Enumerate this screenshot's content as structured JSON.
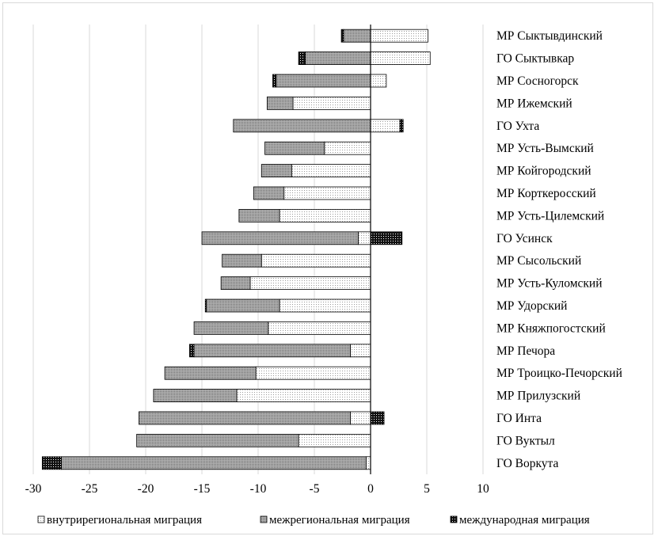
{
  "chart_data": {
    "type": "bar",
    "orientation": "horizontal",
    "stacked": true,
    "categories": [
      "МР Сыктывдинский",
      "ГО Сыктывкар",
      "МР Сосногорск",
      "МР Ижемский",
      "ГО Ухта",
      "МР Усть-Вымский",
      "МР Койгородский",
      "МР Корткеросский",
      "МР Усть-Цилемский",
      "ГО Усинск",
      "МР Сысольский",
      "МР Усть-Куломский",
      "МР Удорский",
      "МР Княжпогостский",
      "МР Печора",
      "МР Троицко-Печорский",
      "МР Прилузский",
      "ГО Инта",
      "ГО Вуктыл",
      "ГО Воркута"
    ],
    "series": [
      {
        "name": "внутрирегиональная миграция",
        "color": "#ffffff",
        "pattern": "fine-dots",
        "values": [
          5.1,
          5.3,
          1.4,
          -6.9,
          2.6,
          -4.1,
          -7.0,
          -7.7,
          -8.1,
          -1.1,
          -9.7,
          -10.7,
          -8.1,
          -9.1,
          -1.8,
          -10.2,
          -11.9,
          -1.8,
          -6.4,
          -0.4
        ]
      },
      {
        "name": "межрегиональная миграция",
        "color": "#c0c0c0",
        "pattern": "dense-dots",
        "values": [
          -2.4,
          -5.8,
          -8.4,
          -2.3,
          -12.2,
          -5.3,
          -2.7,
          -2.7,
          -3.6,
          -13.9,
          -3.5,
          -2.6,
          -6.5,
          -6.6,
          -13.9,
          -8.1,
          -7.4,
          -18.8,
          -14.4,
          -27.1
        ]
      },
      {
        "name": "международная миграция",
        "color": "#000000",
        "pattern": "dark-dots",
        "values": [
          -0.2,
          -0.6,
          -0.3,
          0.0,
          0.3,
          0.0,
          0.0,
          0.0,
          0.0,
          2.8,
          0.0,
          0.0,
          -0.1,
          0.0,
          -0.4,
          0.0,
          0.0,
          1.2,
          0.0,
          -1.7
        ]
      }
    ],
    "xlim": [
      -30,
      10
    ],
    "xticks": [
      "-30",
      "-25",
      "-20",
      "-15",
      "-10",
      "-5",
      "0",
      "5",
      "10"
    ],
    "grid": "vertical",
    "legend_position": "bottom",
    "title": "",
    "xlabel": "",
    "ylabel": ""
  }
}
